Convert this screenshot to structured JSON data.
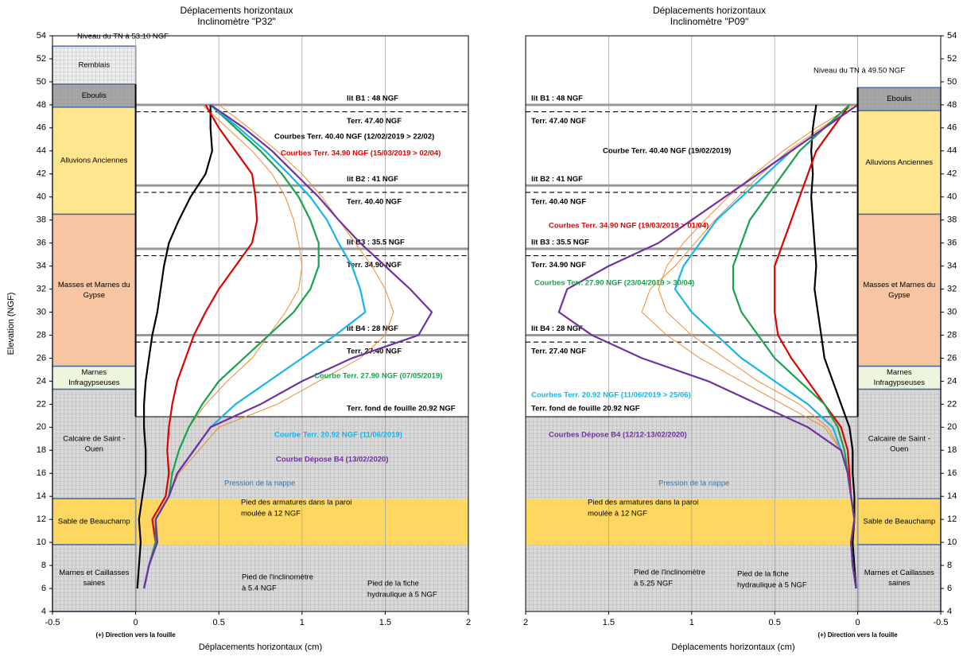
{
  "chart_data": [
    {
      "type": "line",
      "orientation": "vertical",
      "xreversed": false,
      "title": "Déplacements horizontaux",
      "subtitle": "Inclinomètre \"P32\"",
      "xlabel": "Déplacements horizontaux (cm)",
      "ylabel": "Elevation (NGF)",
      "note": "(+) Direction vers la fouille",
      "xlim": [
        -0.5,
        2
      ],
      "xticks": [
        -0.5,
        0,
        0.5,
        1,
        1.5,
        2
      ],
      "ylim": [
        4,
        54
      ],
      "yticks": [
        4,
        6,
        8,
        10,
        12,
        14,
        16,
        18,
        20,
        22,
        24,
        26,
        28,
        30,
        32,
        34,
        36,
        38,
        40,
        42,
        44,
        46,
        48,
        50,
        52,
        54
      ],
      "ytick_side": "left",
      "grid": true,
      "layers": [
        {
          "lines": [
            "Remblais"
          ],
          "top": 53.1,
          "bottom": 49.8,
          "color": "#eeeeee",
          "hatch": true
        },
        {
          "lines": [
            "Eboulis"
          ],
          "top": 49.8,
          "bottom": 47.8,
          "color": "#a6a6a6",
          "hatch": true
        },
        {
          "lines": [
            "Alluvions Anciennes"
          ],
          "top": 47.8,
          "bottom": 38.5,
          "color": "#fde68e",
          "hatch": false
        },
        {
          "lines": [
            "Masses et Marnes du",
            "Gypse"
          ],
          "top": 38.5,
          "bottom": 25.3,
          "color": "#f8c5a2",
          "hatch": false
        },
        {
          "lines": [
            "Marnes",
            "Infragypseuses"
          ],
          "top": 25.3,
          "bottom": 23.3,
          "color": "#eef5df",
          "hatch": false
        },
        {
          "lines": [
            "Calcaire de Saint -",
            "Ouen"
          ],
          "top": 23.3,
          "bottom": 13.8,
          "color": "#d9d9d9",
          "hatch": true
        },
        {
          "lines": [
            "Sable de Beauchamp"
          ],
          "top": 13.8,
          "bottom": 9.8,
          "color": "#fdd760",
          "hatch": false
        },
        {
          "lines": [
            "Marnes et Caillasses",
            "saines"
          ],
          "top": 9.8,
          "bottom": 4,
          "color": "#d9d9d9",
          "hatch": true
        }
      ],
      "levels": [
        {
          "label": "lit B1 : 48 NGF",
          "value": 48,
          "style": "lit"
        },
        {
          "label": "Terr. 47.40 NGF",
          "value": 47.4,
          "style": "terr"
        },
        {
          "label": "lit B2 : 41 NGF",
          "value": 41,
          "style": "lit"
        },
        {
          "label": "Terr. 40.40 NGF",
          "value": 40.4,
          "style": "terr"
        },
        {
          "label": "lit B3 : 35.5 NGF",
          "value": 35.5,
          "style": "lit"
        },
        {
          "label": "Terr. 34.90 NGF",
          "value": 34.9,
          "style": "terr"
        },
        {
          "label": "lit B4 : 28 NGF",
          "value": 28,
          "style": "lit"
        },
        {
          "label": "Terr. 27.40 NGF",
          "value": 27.4,
          "style": "terr"
        },
        {
          "label": "Terr. fond de fouille 20.92 NGF",
          "value": 20.92,
          "style": "fond"
        }
      ],
      "x": [
        48,
        46,
        44,
        42,
        40,
        38,
        36,
        34,
        32,
        30,
        28,
        26,
        24,
        22,
        20,
        18,
        16,
        14,
        12,
        10,
        8,
        6
      ],
      "series": [
        {
          "color": "#f08a32",
          "values": [
            0.4,
            0.55,
            0.7,
            0.82,
            0.9,
            0.95,
            0.98,
            1.0,
            0.98,
            0.9,
            0.8,
            0.7,
            0.55,
            0.42,
            0.32,
            0.26,
            0.22,
            0.2,
            0.12,
            0.12,
            0.08,
            0.05
          ]
        },
        {
          "color": "#f08a32",
          "values": [
            0.5,
            0.68,
            0.85,
            1.0,
            1.12,
            1.22,
            1.32,
            1.42,
            1.5,
            1.55,
            1.5,
            1.35,
            1.1,
            0.85,
            0.5,
            0.38,
            0.26,
            0.2,
            0.12,
            0.13,
            0.08,
            0.05
          ]
        },
        {
          "color": "#000000",
          "values": [
            0.45,
            0.45,
            0.46,
            0.42,
            0.33,
            0.26,
            0.2,
            0.17,
            0.15,
            0.13,
            0.1,
            0.08,
            0.06,
            0.05,
            0.05,
            0.06,
            0.06,
            0.04,
            0.02,
            0.03,
            0.02,
            0.01
          ]
        },
        {
          "color": "#e00000",
          "values": [
            0.42,
            0.5,
            0.6,
            0.7,
            0.72,
            0.73,
            0.7,
            0.6,
            0.5,
            0.42,
            0.35,
            0.3,
            0.25,
            0.22,
            0.2,
            0.19,
            0.2,
            0.18,
            0.1,
            0.12,
            0.08,
            0.05
          ]
        },
        {
          "color": "#16a34a",
          "values": [
            0.45,
            0.6,
            0.75,
            0.88,
            0.98,
            1.05,
            1.1,
            1.1,
            1.05,
            0.95,
            0.8,
            0.65,
            0.5,
            0.4,
            0.32,
            0.26,
            0.22,
            0.2,
            0.12,
            0.12,
            0.08,
            0.05
          ]
        },
        {
          "color": "#17b4e8",
          "values": [
            0.45,
            0.62,
            0.78,
            0.92,
            1.05,
            1.15,
            1.22,
            1.3,
            1.35,
            1.38,
            1.2,
            1.0,
            0.8,
            0.6,
            0.45,
            0.35,
            0.25,
            0.2,
            0.12,
            0.13,
            0.08,
            0.05
          ]
        },
        {
          "color": "#7030a0",
          "values": [
            0.45,
            0.65,
            0.82,
            0.96,
            1.1,
            1.22,
            1.35,
            1.5,
            1.65,
            1.78,
            1.7,
            1.3,
            1.0,
            0.75,
            0.45,
            0.35,
            0.25,
            0.2,
            0.12,
            0.13,
            0.08,
            0.05
          ]
        }
      ],
      "annotations": [
        {
          "lines": [
            "Niveau du TN à 53.10 NGF"
          ],
          "color": "#000000"
        },
        {
          "lines": [
            "Courbes Terr. 40.40 NGF (12/02/2019 > 22/02)"
          ],
          "color": "#000000"
        },
        {
          "lines": [
            "Courbes Terr. 34.90 NGF (15/03/2019 > 02/04)"
          ],
          "color": "#e00000"
        },
        {
          "lines": [
            "Courbe Terr. 27.90 NGF (07/05/2019)"
          ],
          "color": "#16a34a"
        },
        {
          "lines": [
            "Courbe Terr. 20.92 NGF  (11/06/2019)"
          ],
          "color": "#17b4e8"
        },
        {
          "lines": [
            "Courbe Dépose B4 (13/02/2020)"
          ],
          "color": "#7030a0"
        },
        {
          "lines": [
            "Pression de la nappe"
          ],
          "color": "#2e75b6"
        },
        {
          "lines": [
            "Pied des armatures dans la paroi",
            "moulée à 12 NGF"
          ],
          "color": "#000000"
        },
        {
          "lines": [
            "Pied de l'inclinomètre",
            "à 5.4 NGF"
          ],
          "color": "#000000"
        },
        {
          "lines": [
            "Pied de la fiche",
            "hydraulique à 5 NGF"
          ],
          "color": "#000000"
        }
      ]
    },
    {
      "type": "line",
      "orientation": "vertical",
      "xreversed": true,
      "title": "Déplacements horizontaux",
      "subtitle": "Inclinomètre \"P09\"",
      "xlabel": "Déplacements horizontaux (cm)",
      "note": "(+) Direction vers la fouille",
      "xlim": [
        2,
        -0.5
      ],
      "xticks": [
        2,
        1.5,
        1,
        0.5,
        0,
        -0.5
      ],
      "ylim": [
        4,
        54
      ],
      "yticks": [
        4,
        6,
        8,
        10,
        12,
        14,
        16,
        18,
        20,
        22,
        24,
        26,
        28,
        30,
        32,
        34,
        36,
        38,
        40,
        42,
        44,
        46,
        48,
        50,
        52,
        54
      ],
      "ytick_side": "right",
      "grid": true,
      "layers": [
        {
          "lines": [
            "Eboulis"
          ],
          "top": 49.5,
          "bottom": 47.5,
          "color": "#a6a6a6",
          "hatch": true
        },
        {
          "lines": [
            "Alluvions Anciennes"
          ],
          "top": 47.5,
          "bottom": 38.5,
          "color": "#fde68e",
          "hatch": false
        },
        {
          "lines": [
            "Masses et Marnes du",
            "Gypse"
          ],
          "top": 38.5,
          "bottom": 25.3,
          "color": "#f8c5a2",
          "hatch": false
        },
        {
          "lines": [
            "Marnes",
            "Infragypseuses"
          ],
          "top": 25.3,
          "bottom": 23.3,
          "color": "#eef5df",
          "hatch": false
        },
        {
          "lines": [
            "Calcaire de Saint -",
            "Ouen"
          ],
          "top": 23.3,
          "bottom": 13.8,
          "color": "#d9d9d9",
          "hatch": true
        },
        {
          "lines": [
            "Sable de Beauchamp"
          ],
          "top": 13.8,
          "bottom": 9.8,
          "color": "#fdd760",
          "hatch": false
        },
        {
          "lines": [
            "Marnes et Caillasses",
            "saines"
          ],
          "top": 9.8,
          "bottom": 4,
          "color": "#d9d9d9",
          "hatch": true
        }
      ],
      "levels": [
        {
          "label": "lit B1 : 48 NGF",
          "value": 48,
          "style": "lit"
        },
        {
          "label": "Terr. 47.40 NGF",
          "value": 47.4,
          "style": "terr"
        },
        {
          "label": "lit B2 : 41 NGF",
          "value": 41,
          "style": "lit"
        },
        {
          "label": "Terr. 40.40 NGF",
          "value": 40.4,
          "style": "terr"
        },
        {
          "label": "lit B3 : 35.5 NGF",
          "value": 35.5,
          "style": "lit"
        },
        {
          "label": "Terr. 34.90 NGF",
          "value": 34.9,
          "style": "terr"
        },
        {
          "label": "lit B4 : 28 NGF",
          "value": 28,
          "style": "lit"
        },
        {
          "label": "Terr. 27.40 NGF",
          "value": 27.4,
          "style": "terr"
        },
        {
          "label": "Terr. fond de fouille 20.92 NGF",
          "value": 20.92,
          "style": "fond"
        }
      ],
      "x": [
        48,
        46,
        44,
        42,
        40,
        38,
        36,
        34,
        32,
        30,
        28,
        26,
        24,
        22,
        20,
        18,
        16,
        14,
        12,
        10,
        8,
        6
      ],
      "series": [
        {
          "color": "#f08a32",
          "values": [
            0.02,
            0.25,
            0.45,
            0.62,
            0.78,
            0.92,
            1.05,
            1.15,
            1.2,
            1.15,
            1.0,
            0.8,
            0.6,
            0.35,
            0.18,
            0.1,
            0.06,
            0.04,
            0.02,
            0.04,
            0.03,
            0.01
          ]
        },
        {
          "color": "#f08a32",
          "values": [
            0.0,
            0.22,
            0.42,
            0.58,
            0.72,
            0.86,
            0.98,
            1.1,
            1.25,
            1.3,
            1.15,
            0.95,
            0.7,
            0.45,
            0.2,
            0.1,
            0.06,
            0.04,
            0.02,
            0.04,
            0.03,
            0.01
          ]
        },
        {
          "color": "#000000",
          "values": [
            0.25,
            0.27,
            0.28,
            0.27,
            0.28,
            0.27,
            0.26,
            0.25,
            0.26,
            0.24,
            0.22,
            0.2,
            0.15,
            0.1,
            0.05,
            0.03,
            0.03,
            0.02,
            0.02,
            0.03,
            0.02,
            0.01
          ]
        },
        {
          "color": "#e00000",
          "values": [
            0.05,
            0.15,
            0.25,
            0.3,
            0.35,
            0.4,
            0.45,
            0.5,
            0.5,
            0.5,
            0.48,
            0.4,
            0.3,
            0.2,
            0.1,
            0.06,
            0.05,
            0.04,
            0.02,
            0.04,
            0.03,
            0.01
          ]
        },
        {
          "color": "#16a34a",
          "values": [
            0.05,
            0.2,
            0.35,
            0.45,
            0.55,
            0.65,
            0.7,
            0.75,
            0.75,
            0.7,
            0.6,
            0.5,
            0.35,
            0.2,
            0.12,
            0.08,
            0.06,
            0.04,
            0.02,
            0.04,
            0.03,
            0.01
          ]
        },
        {
          "color": "#17b4e8",
          "values": [
            0.0,
            0.2,
            0.4,
            0.55,
            0.7,
            0.85,
            0.95,
            1.05,
            1.1,
            1.0,
            0.85,
            0.7,
            0.5,
            0.3,
            0.15,
            0.1,
            0.06,
            0.04,
            0.02,
            0.04,
            0.03,
            0.01
          ]
        },
        {
          "color": "#7030a0",
          "values": [
            0.0,
            0.2,
            0.4,
            0.6,
            0.8,
            1.0,
            1.2,
            1.5,
            1.75,
            1.8,
            1.6,
            1.3,
            0.9,
            0.6,
            0.3,
            0.1,
            0.06,
            0.04,
            0.02,
            0.04,
            0.03,
            0.01
          ]
        }
      ],
      "annotations": [
        {
          "lines": [
            "Niveau du TN à 49.50 NGF"
          ],
          "color": "#000000"
        },
        {
          "lines": [
            "Courbe Terr. 40.40 NGF (19/02/2019)"
          ],
          "color": "#000000"
        },
        {
          "lines": [
            "Courbes Terr. 34.90 NGF (19/03/2019 > 01/04)"
          ],
          "color": "#e00000"
        },
        {
          "lines": [
            "Courbes Terr. 27.90 NGF (23/04/2019 > 30/04)"
          ],
          "color": "#16a34a"
        },
        {
          "lines": [
            "Courbes Terr. 20.92 NGF (11/06/2019 > 25/06)"
          ],
          "color": "#17b4e8"
        },
        {
          "lines": [
            "Courbes Dépose B4 (12/12-13/02/2020)"
          ],
          "color": "#7030a0"
        },
        {
          "lines": [
            "Pression de la nappe"
          ],
          "color": "#2e75b6"
        },
        {
          "lines": [
            "Pied des armatures dans la paroi",
            "moulée à 12 NGF"
          ],
          "color": "#000000"
        },
        {
          "lines": [
            "Pied de l'inclinomètre",
            "à 5.25 NGF"
          ],
          "color": "#000000"
        },
        {
          "lines": [
            "Pied de la fiche",
            "hydraulique à 5 NGF"
          ],
          "color": "#000000"
        }
      ]
    }
  ]
}
